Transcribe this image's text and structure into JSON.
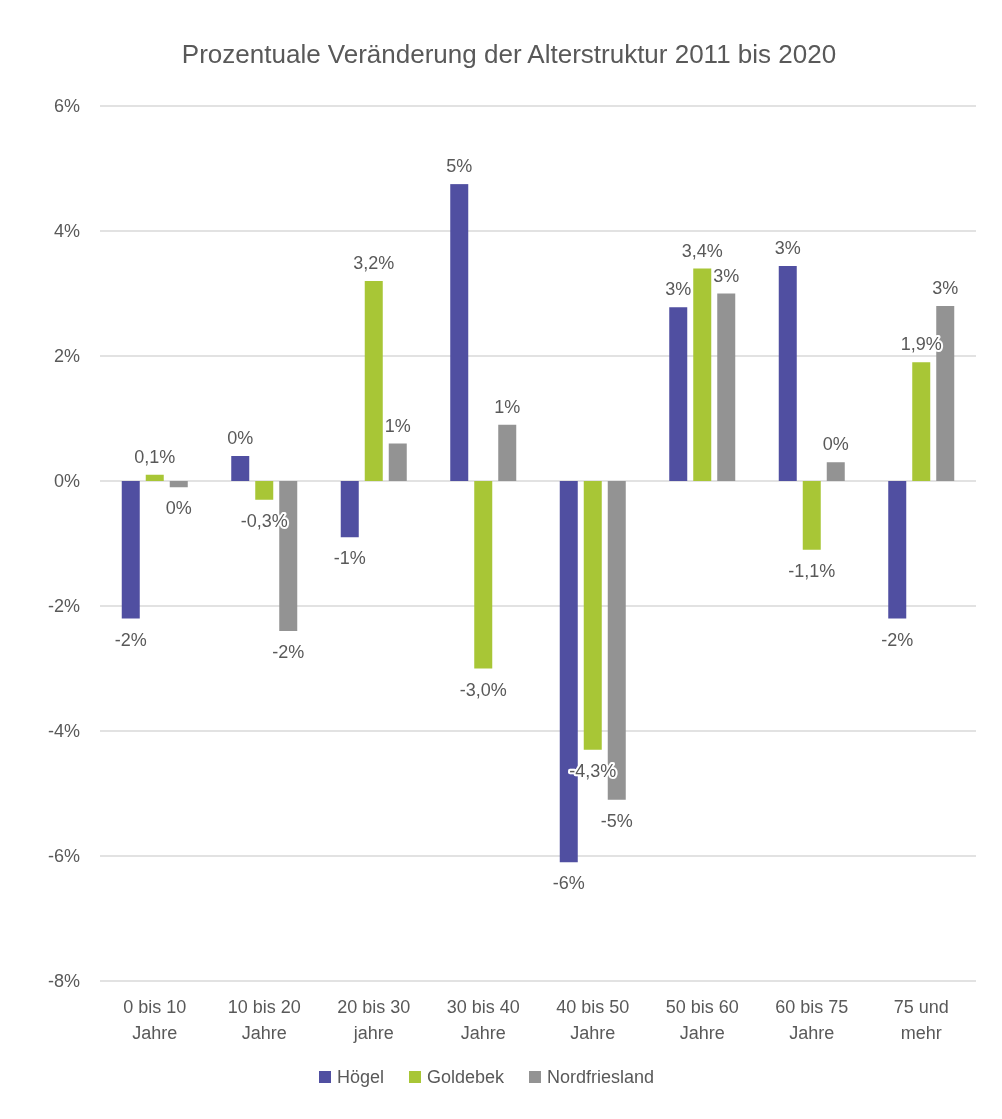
{
  "chart_data": {
    "type": "bar",
    "title": "Prozentuale Veränderung der Alterstruktur 2011 bis 2020",
    "categories": [
      "0 bis 10 Jahre",
      "10 bis 20 Jahre",
      "20 bis 30 jahre",
      "30 bis 40 Jahre",
      "40 bis 50 Jahre",
      "50 bis 60 Jahre",
      "60 bis 75 Jahre",
      "75 und mehr"
    ],
    "series": [
      {
        "name": "Högel",
        "color": "#504fa1",
        "values": [
          -2.2,
          0.4,
          -0.9,
          4.75,
          -6.1,
          2.78,
          3.44,
          -2.2
        ],
        "value_labels": [
          "-2%",
          "0%",
          "-1%",
          "5%",
          "-6%",
          "3%",
          "3%",
          "-2%"
        ]
      },
      {
        "name": "Goldebek",
        "color": "#a8c636",
        "values": [
          0.1,
          -0.3,
          3.2,
          -3.0,
          -4.3,
          3.4,
          -1.1,
          1.9
        ],
        "value_labels": [
          "0,1%",
          "-0,3%",
          "3,2%",
          "-3,0%",
          "-4,3%",
          "3,4%",
          "-1,1%",
          "1,9%"
        ]
      },
      {
        "name": "Nordfriesland",
        "color": "#939393",
        "values": [
          -0.1,
          -2.4,
          0.6,
          0.9,
          -5.1,
          3.0,
          0.3,
          2.8
        ],
        "value_labels": [
          "0%",
          "-2%",
          "1%",
          "1%",
          "-5%",
          "3%",
          "0%",
          "3%"
        ]
      }
    ],
    "ylim": [
      -8,
      6
    ],
    "yticks": [
      {
        "value": -8,
        "label": "-8%"
      },
      {
        "value": -6,
        "label": "-6%"
      },
      {
        "value": -4,
        "label": "-4%"
      },
      {
        "value": -2,
        "label": "-2%"
      },
      {
        "value": 0,
        "label": "0%"
      },
      {
        "value": 2,
        "label": "2%"
      },
      {
        "value": 4,
        "label": "4%"
      },
      {
        "value": 6,
        "label": "6%"
      }
    ],
    "grid": "y",
    "legend": "bottom"
  }
}
